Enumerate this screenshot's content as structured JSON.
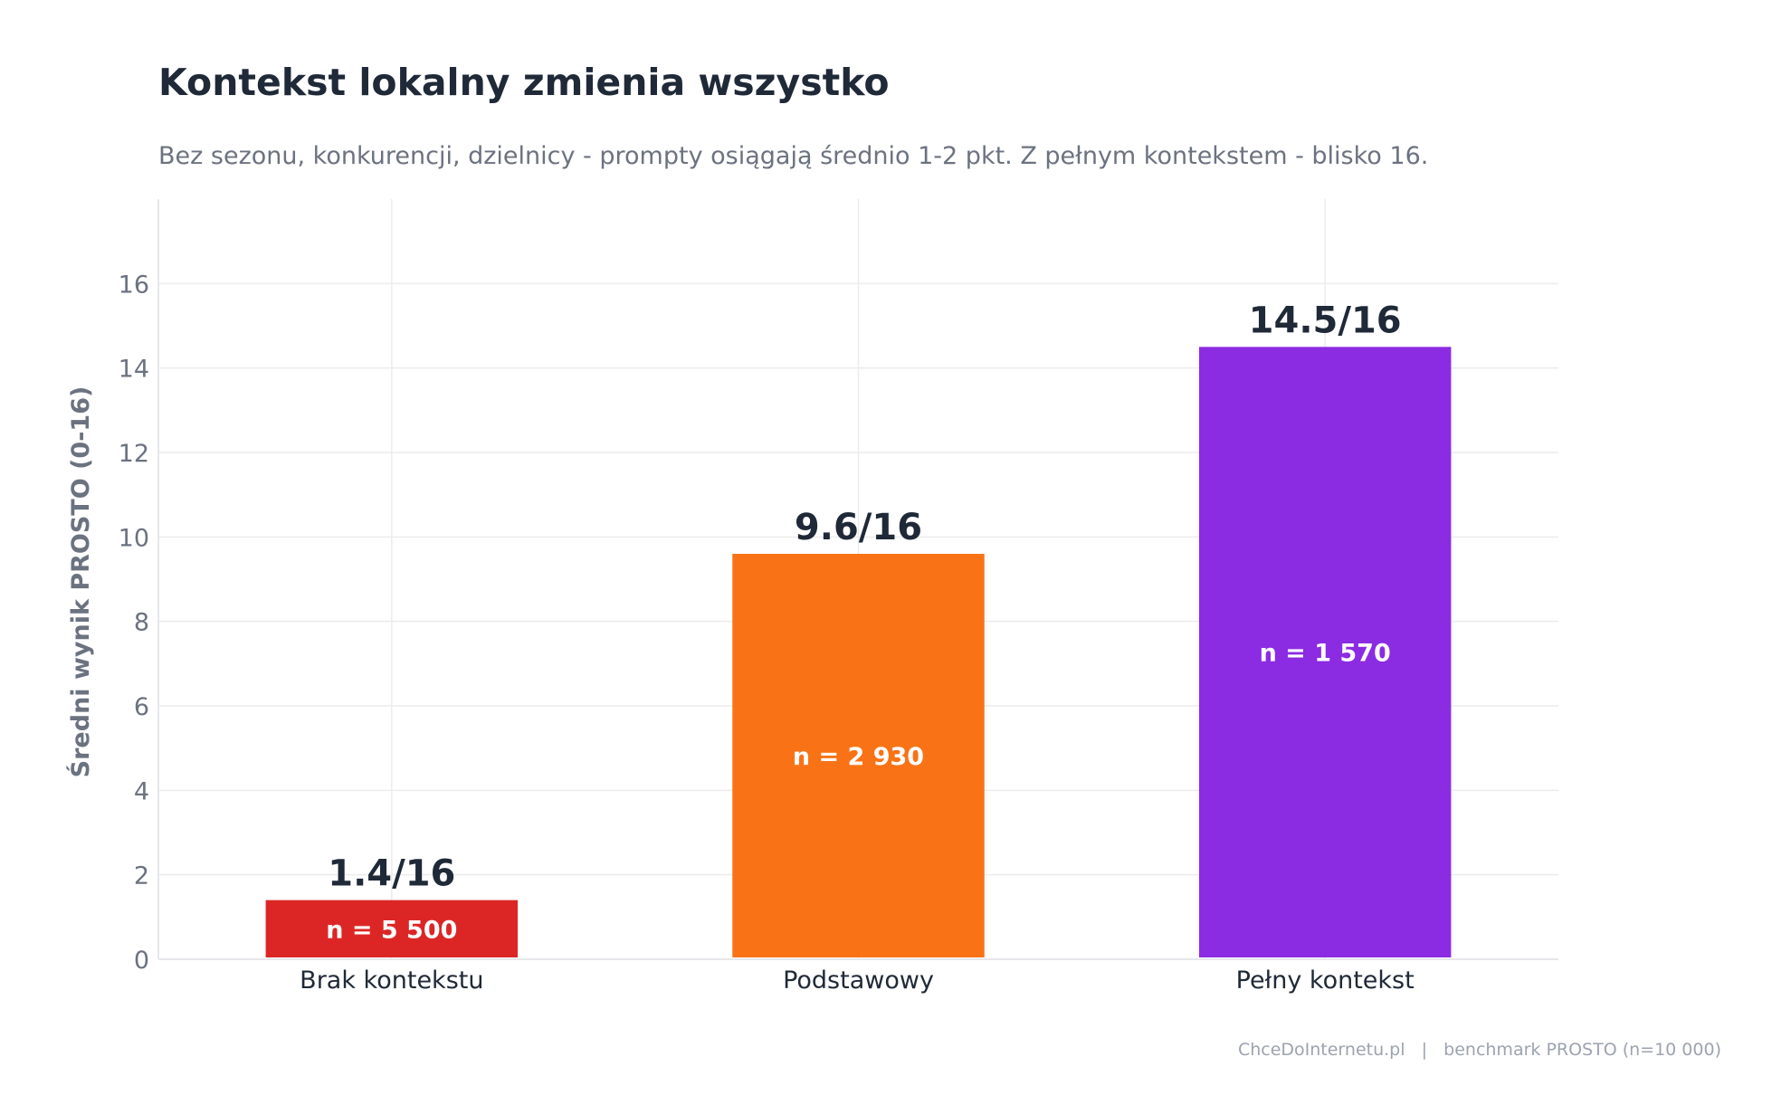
{
  "chart_data": {
    "type": "bar",
    "title": "Kontekst lokalny zmienia wszystko",
    "subtitle": "Bez sezonu, konkurencji, dzielnicy - prompty osiągają średnio 1-2 pkt. Z pełnym kontekstem - blisko 16.",
    "ylabel": "Średni wynik PROSTO (0-16)",
    "xlabel": "",
    "ylim": [
      0,
      18
    ],
    "yticks": [
      0,
      2,
      4,
      6,
      8,
      10,
      12,
      14,
      16
    ],
    "grid": true,
    "categories": [
      "Brak kontekstu",
      "Podstawowy",
      "Pełny kontekst"
    ],
    "values": [
      1.4,
      9.6,
      14.5
    ],
    "value_labels": [
      "1.4/16",
      "9.6/16",
      "14.5/16"
    ],
    "n_labels": [
      "n = 5 500",
      "n = 2 930",
      "n = 1 570"
    ],
    "colors": [
      "#dc2626",
      "#f97316",
      "#8b2be2"
    ],
    "footer": "ChceDoInternetu.pl   |   benchmark PROSTO (n=10 000)"
  }
}
